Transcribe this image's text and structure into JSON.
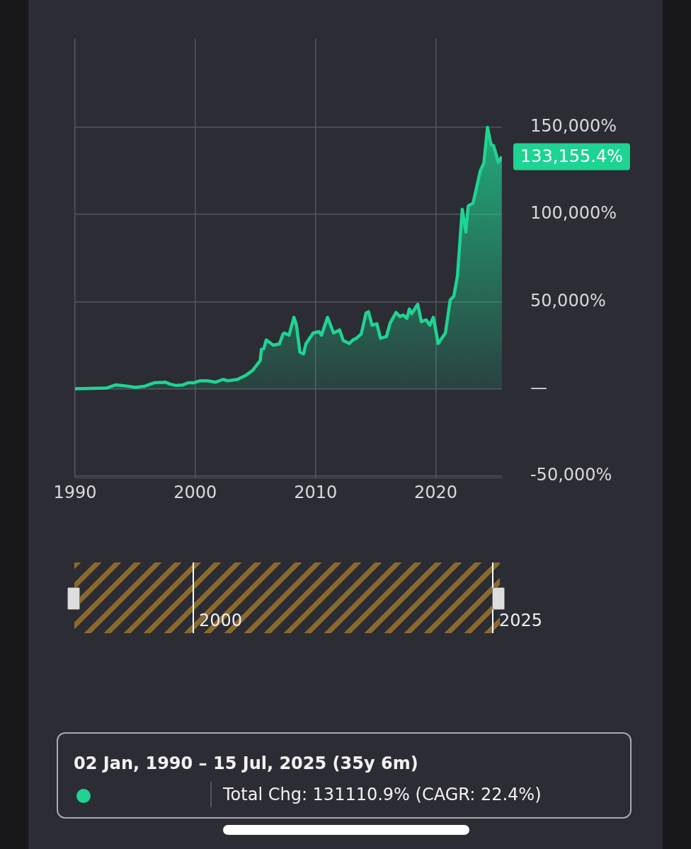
{
  "chart_data": {
    "type": "area",
    "x": [
      1990,
      1992.6,
      1993.4,
      1994.4,
      1995,
      1995.8,
      1996.6,
      1997.5,
      1997.9,
      1998.4,
      1999,
      1999.4,
      1999.9,
      2000.4,
      2001,
      2001.7,
      2002.3,
      2002.7,
      2003.5,
      2004.2,
      2004.8,
      2005.4,
      2005.5,
      2005.7,
      2005.9,
      2006.5,
      2007,
      2007.3,
      2007.4,
      2007.8,
      2008.2,
      2008.4,
      2008.7,
      2009.0,
      2009.2,
      2009.8,
      2010.3,
      2010.5,
      2011.0,
      2011.5,
      2012.0,
      2012.3,
      2012.8,
      2013.1,
      2013.4,
      2013.8,
      2014.2,
      2014.4,
      2014.7,
      2015.1,
      2015.4,
      2015.9,
      2016.2,
      2016.7,
      2017.0,
      2017.3,
      2017.6,
      2017.8,
      2018.0,
      2018.5,
      2018.8,
      2019.2,
      2019.5,
      2019.8,
      2020.2,
      2020.8,
      2021.2,
      2021.5,
      2021.8,
      2022.2,
      2022.5,
      2022.7,
      2023.1,
      2023.7,
      2024.0,
      2024.3,
      2024.6,
      2024.8,
      2025.2,
      2025.5
    ],
    "series": [
      {
        "color": "#1ed492",
        "values": [
          0,
          400,
          2300,
          1500,
          800,
          1500,
          3500,
          3800,
          2700,
          1900,
          2300,
          3500,
          3500,
          4600,
          4600,
          3800,
          5400,
          4600,
          5400,
          7700,
          10800,
          16200,
          22700,
          23000,
          28000,
          25000,
          25800,
          31500,
          32000,
          30800,
          41000,
          37000,
          21000,
          20000,
          25800,
          32000,
          32800,
          30800,
          41000,
          32000,
          33800,
          27700,
          26000,
          28000,
          29000,
          31500,
          43500,
          44200,
          36500,
          37300,
          29000,
          30000,
          37700,
          43800,
          41500,
          42300,
          40400,
          45800,
          43100,
          48500,
          38500,
          39600,
          36500,
          41000,
          26000,
          32000,
          51000,
          53100,
          64600,
          103000,
          90000,
          105000,
          106500,
          125000,
          129600,
          150000,
          140000,
          139600,
          130000,
          133155.4
        ]
      }
    ],
    "xlim": [
      1990,
      2025.5
    ],
    "xticks": [
      1990,
      2000,
      2010,
      2020
    ],
    "ylim": [
      -51000,
      201000
    ],
    "yticks": [
      {
        "value": -50000,
        "label": "-50,000%"
      },
      {
        "value": 0,
        "label": "—"
      },
      {
        "value": 50000,
        "label": "50,000%"
      },
      {
        "value": 100000,
        "label": "100,000%"
      },
      {
        "value": 150000,
        "label": "150,000%"
      }
    ],
    "grid": true,
    "legend": false,
    "marker": "none",
    "line_style": "solid",
    "annotations": [
      {
        "text": "133,155.4%",
        "x": 2025.5,
        "y": 133155.4
      },
      "02 Jan, 1990 – 15 Jul, 2025 (35y 6m)",
      "Total Chg: 131110.9% (CAGR: 22.4%)",
      "2000",
      "2025"
    ]
  }
}
